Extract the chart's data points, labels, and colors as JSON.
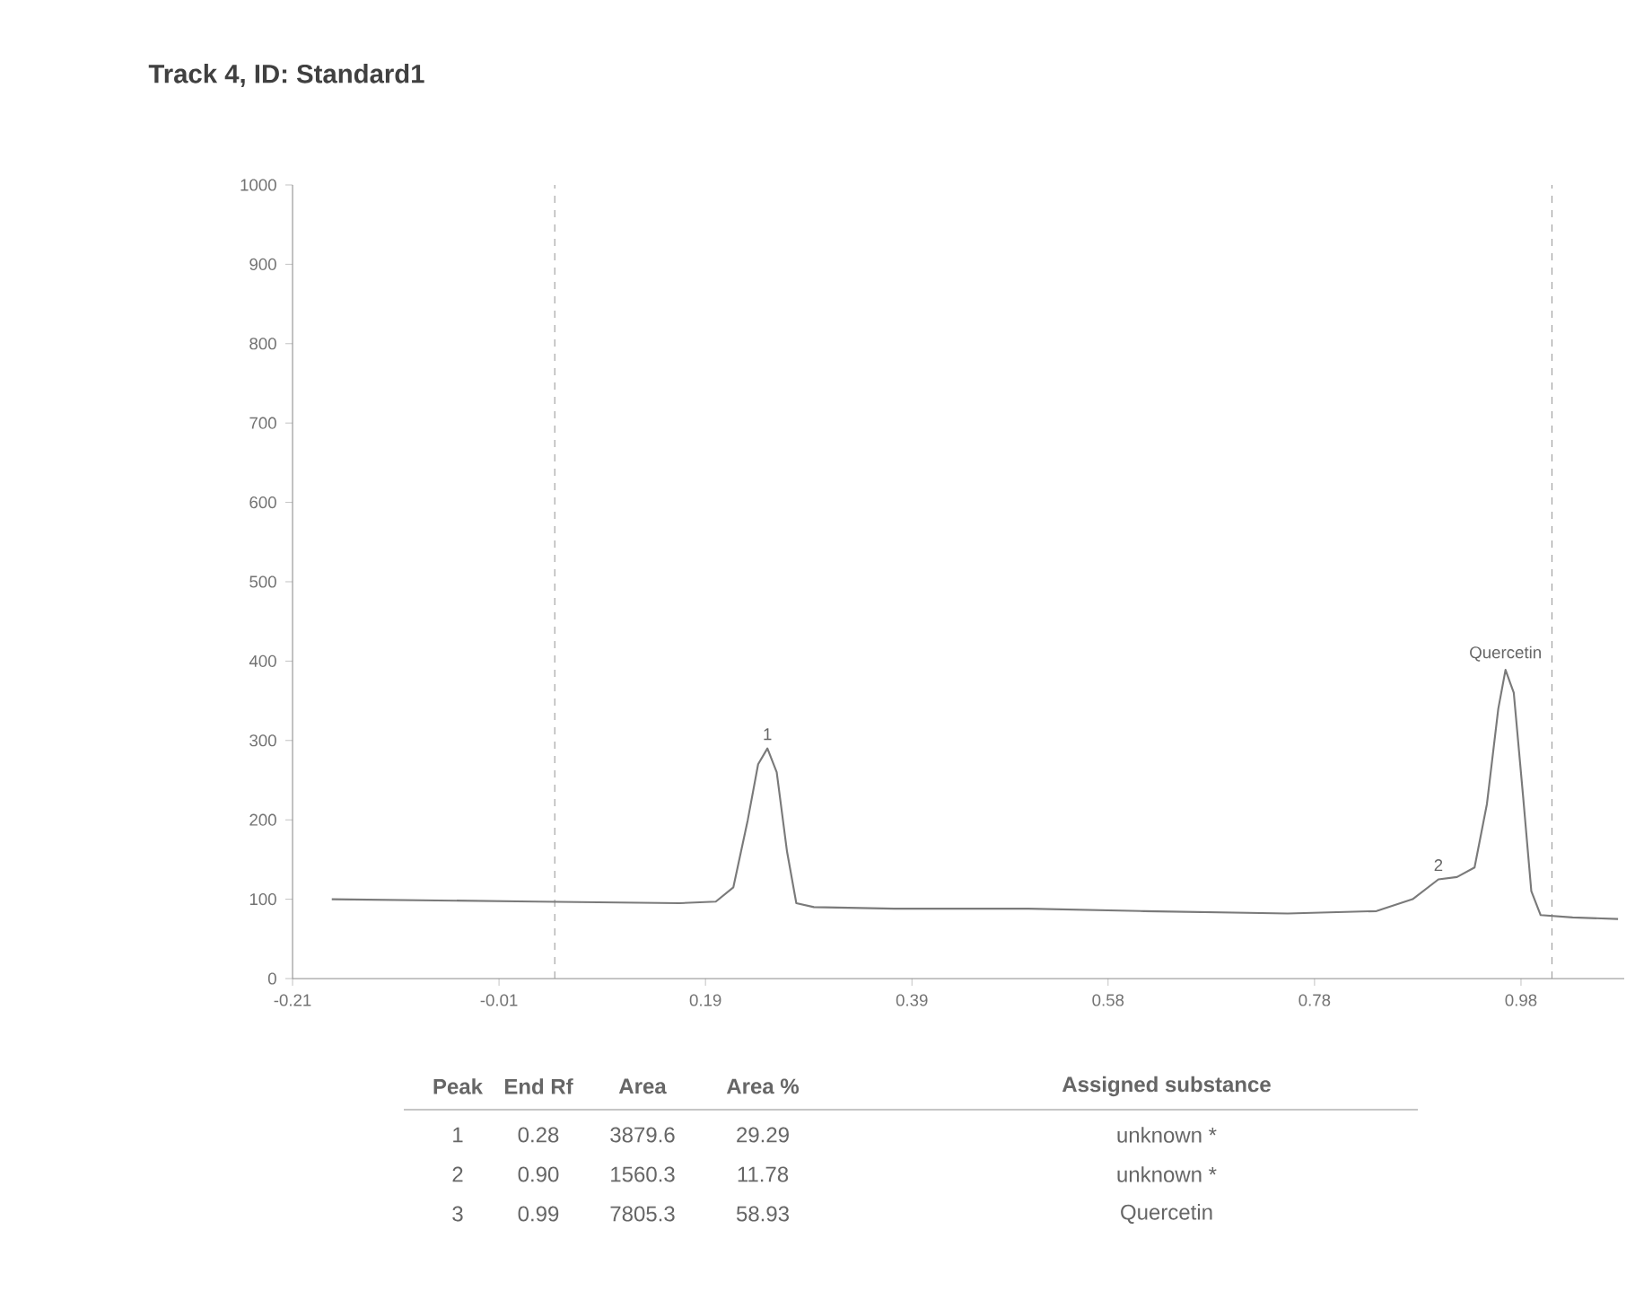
{
  "chart_data": {
    "type": "line",
    "title": "Track 4, ID: Standard1",
    "x": [
      -0.172,
      0.027,
      0.165,
      0.2,
      0.217,
      0.231,
      0.241,
      0.25,
      0.259,
      0.269,
      0.278,
      0.295,
      0.373,
      0.503,
      0.615,
      0.754,
      0.84,
      0.875,
      0.9,
      0.918,
      0.935,
      0.947,
      0.958,
      0.965,
      0.973,
      0.982,
      0.99,
      0.999,
      1.03,
      1.074
    ],
    "series": [
      {
        "color": "#7a7a7a",
        "values": [
          100,
          97,
          95,
          97,
          115,
          200,
          270,
          290,
          260,
          160,
          95,
          90,
          88,
          88,
          85,
          82,
          85,
          100,
          125,
          128,
          140,
          220,
          340,
          389,
          360,
          230,
          110,
          80,
          77,
          75
        ]
      }
    ],
    "xlim": [
      -0.21,
      1.08
    ],
    "ylim": [
      0,
      1000
    ],
    "xticks": [
      -0.21,
      -0.01,
      0.19,
      0.39,
      0.58,
      0.78,
      0.98
    ],
    "yticks": [
      0,
      100,
      200,
      300,
      400,
      500,
      600,
      700,
      800,
      900,
      1000
    ],
    "ref_lines": [
      {
        "axis": "x",
        "value": 0.044,
        "color": "#9a9a9a",
        "line_style": "dashed"
      },
      {
        "axis": "x",
        "value": 1.01,
        "color": "#9a9a9a",
        "line_style": "dashed"
      }
    ],
    "grid": false,
    "marker": "none",
    "line_style": "solid",
    "annotations": [
      {
        "text": "1",
        "x": 0.25,
        "y": 290
      },
      {
        "text": "2",
        "x": 0.9,
        "y": 125
      },
      {
        "text": "Quercetin",
        "x": 0.965,
        "y": 389
      },
      "Peak",
      "End Rf",
      "Area",
      "Area %",
      "Assigned substance",
      "1",
      "0.28",
      "3879.6",
      "29.29",
      "unknown *",
      "2",
      "0.90",
      "1560.3",
      "11.78",
      "unknown *",
      "3",
      "0.99",
      "7805.3",
      "58.93",
      "Quercetin"
    ]
  }
}
